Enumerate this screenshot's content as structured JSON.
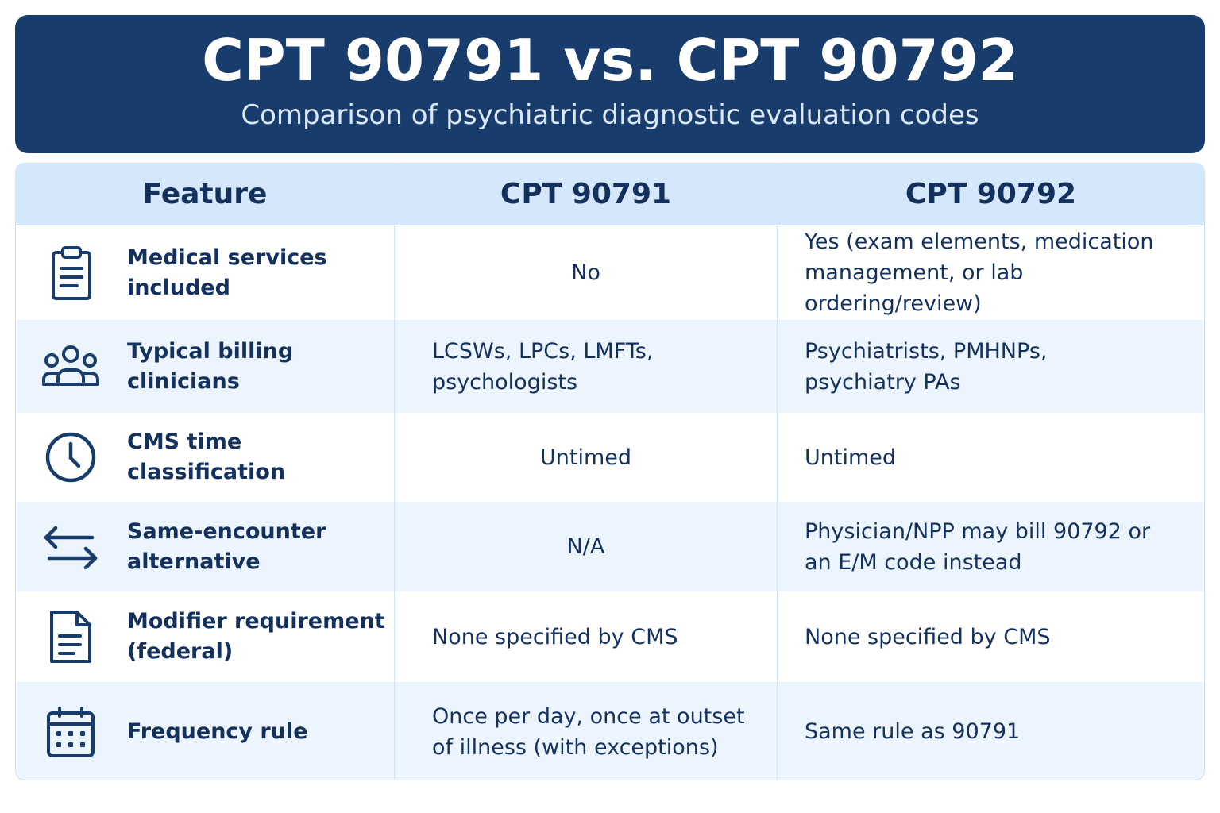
{
  "banner": {
    "title": "CPT 90791 vs. CPT 90792",
    "subtitle": "Comparison of psychiatric diagnostic evaluation codes"
  },
  "table": {
    "headers": [
      "Feature",
      "CPT 90791",
      "CPT 90792"
    ],
    "rows": [
      {
        "icon": "clipboard-icon",
        "feature": "Medical services included",
        "cpt90791": "No",
        "cpt90792": "Yes (exam elements, medication management, or lab ordering/review)"
      },
      {
        "icon": "people-group-icon",
        "feature": "Typical billing clinicians",
        "cpt90791": "LCSWs, LPCs, LMFTs, psychologists",
        "cpt90792": "Psychiatrists, PMHNPs, psychiatry PAs"
      },
      {
        "icon": "clock-icon",
        "feature": "CMS time classification",
        "cpt90791": "Untimed",
        "cpt90792": "Untimed"
      },
      {
        "icon": "swap-arrows-icon",
        "feature": "Same-encounter alternative",
        "cpt90791": "N/A",
        "cpt90792": "Physician/NPP may bill 90792 or an E/M code instead"
      },
      {
        "icon": "document-icon",
        "feature": "Modifier requirement (federal)",
        "cpt90791": "None specified by CMS",
        "cpt90792": "None specified by CMS"
      },
      {
        "icon": "calendar-icon",
        "feature": "Frequency rule",
        "cpt90791": "Once per day, once at outset of illness (with exceptions)",
        "cpt90792": "Same rule as 90791"
      }
    ]
  },
  "colors": {
    "banner": "#183c6c",
    "header_row": "#d5e7fa",
    "alt_row": "#ecf4fd",
    "text": "#13315c"
  }
}
